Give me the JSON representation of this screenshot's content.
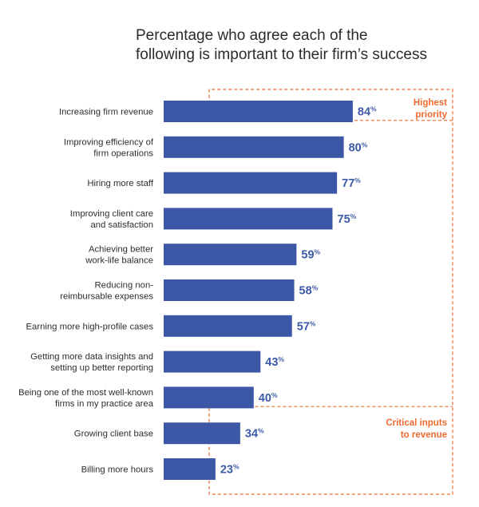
{
  "title_lines": [
    "Percentage who agree each of the",
    "following is important to their firm’s success"
  ],
  "chart_data": {
    "type": "bar",
    "orientation": "horizontal",
    "title": "Percentage who agree each of the following is important to their firm’s success",
    "categories": [
      [
        "Increasing firm revenue"
      ],
      [
        "Improving efficiency of",
        "firm operations"
      ],
      [
        "Hiring more staff"
      ],
      [
        "Improving client care",
        "and satisfaction"
      ],
      [
        "Achieving better",
        "work-life balance"
      ],
      [
        "Reducing non-",
        "reimbursable expenses"
      ],
      [
        "Earning more high-profile cases"
      ],
      [
        "Getting more data insights and",
        "setting up better reporting"
      ],
      [
        "Being one of the most well-known",
        "firms in my practice area"
      ],
      [
        "Growing client base"
      ],
      [
        "Billing more hours"
      ]
    ],
    "values": [
      84,
      80,
      77,
      75,
      59,
      58,
      57,
      43,
      40,
      34,
      23
    ],
    "value_suffix": "%",
    "xlim": [
      0,
      100
    ],
    "bar_color": "#3b57a6",
    "annotations": [
      {
        "text": [
          "Highest",
          "priority"
        ],
        "color": "#ee6a2f",
        "categories_from": 0,
        "categories_to": 0
      },
      {
        "text": [
          "Critical inputs",
          "to revenue"
        ],
        "color": "#ee6a2f",
        "categories_from": 0,
        "categories_to": 10
      }
    ]
  }
}
